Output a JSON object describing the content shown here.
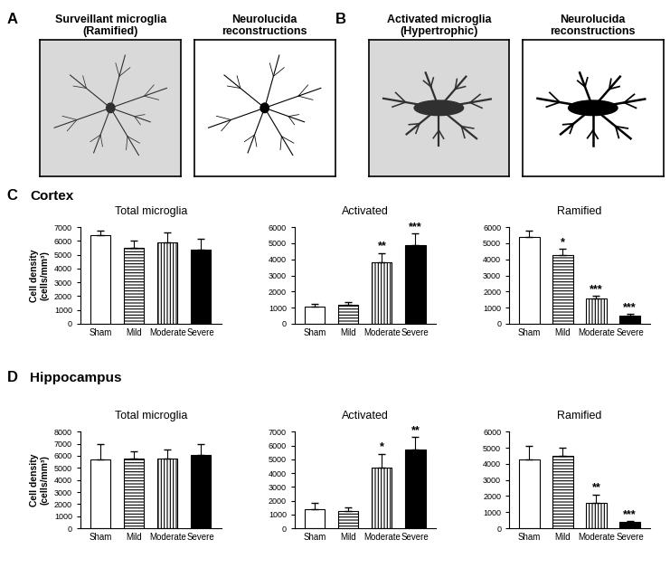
{
  "panels": [
    {
      "label": "A",
      "image_title": "Surveillant microglia\n(Ramified)",
      "reconstruction_title": "Neurolucida\nreconstructions"
    },
    {
      "label": "B",
      "image_title": "Activated microglia\n(Hypertrophic)",
      "reconstruction_title": "Neurolucida\nreconstructions"
    }
  ],
  "sections": [
    {
      "label": "C",
      "title": "Cortex"
    },
    {
      "label": "D",
      "title": "Hippocampus"
    }
  ],
  "chart_data": [
    {
      "type": "bar",
      "title": "Total microglia",
      "y_label": "Cell density\n(cells/mm³)",
      "categories": [
        "Sham",
        "Mild",
        "Moderate",
        "Severe"
      ],
      "values": [
        6400,
        5500,
        5900,
        5350
      ],
      "errors": [
        350,
        550,
        750,
        800
      ],
      "significance": [
        null,
        null,
        null,
        null
      ],
      "colors": [
        "#ffffff",
        "#ffffff",
        "#ffffff",
        "#000000"
      ],
      "ylim": [
        0,
        7000
      ],
      "yticks": [
        0,
        1000,
        2000,
        3000,
        4000,
        5000,
        6000,
        7000
      ]
    },
    {
      "type": "bar",
      "title": "Activated",
      "categories": [
        "Sham",
        "Mild",
        "Moderate",
        "Severe"
      ],
      "values": [
        1050,
        1200,
        3800,
        4900
      ],
      "errors": [
        200,
        150,
        600,
        700
      ],
      "significance": [
        null,
        null,
        "**",
        "***"
      ],
      "colors": [
        "#ffffff",
        "#ffffff",
        "#ffffff",
        "#000000"
      ],
      "ylim": [
        0,
        6000
      ],
      "yticks": [
        0,
        1000,
        2000,
        3000,
        4000,
        5000,
        6000
      ]
    },
    {
      "type": "bar",
      "title": "Ramified",
      "categories": [
        "Sham",
        "Mild",
        "Moderate",
        "Severe"
      ],
      "values": [
        5400,
        4250,
        1550,
        500
      ],
      "errors": [
        400,
        400,
        200,
        100
      ],
      "significance": [
        null,
        "*",
        "***",
        "***"
      ],
      "colors": [
        "#ffffff",
        "#ffffff",
        "#ffffff",
        "#000000"
      ],
      "ylim": [
        0,
        6000
      ],
      "yticks": [
        0,
        1000,
        2000,
        3000,
        4000,
        5000,
        6000
      ]
    },
    {
      "type": "bar",
      "title": "Total microglia",
      "y_label": "Cell density\n(cells/mm³)",
      "categories": [
        "Sham",
        "Mild",
        "Moderate",
        "Severe"
      ],
      "values": [
        5700,
        5800,
        5800,
        6100
      ],
      "errors": [
        1300,
        600,
        750,
        900
      ],
      "significance": [
        null,
        null,
        null,
        null
      ],
      "colors": [
        "#ffffff",
        "#ffffff",
        "#ffffff",
        "#000000"
      ],
      "ylim": [
        0,
        8000
      ],
      "yticks": [
        0,
        1000,
        2000,
        3000,
        4000,
        5000,
        6000,
        7000,
        8000
      ]
    },
    {
      "type": "bar",
      "title": "Activated",
      "categories": [
        "Sham",
        "Mild",
        "Moderate",
        "Severe"
      ],
      "values": [
        1400,
        1250,
        4400,
        5700
      ],
      "errors": [
        450,
        250,
        1000,
        900
      ],
      "significance": [
        null,
        null,
        "*",
        "**"
      ],
      "colors": [
        "#ffffff",
        "#ffffff",
        "#ffffff",
        "#000000"
      ],
      "ylim": [
        0,
        7000
      ],
      "yticks": [
        0,
        1000,
        2000,
        3000,
        4000,
        5000,
        6000,
        7000
      ]
    },
    {
      "type": "bar",
      "title": "Ramified",
      "categories": [
        "Sham",
        "Mild",
        "Moderate",
        "Severe"
      ],
      "values": [
        4300,
        4500,
        1600,
        380
      ],
      "errors": [
        800,
        500,
        500,
        50
      ],
      "significance": [
        null,
        null,
        "**",
        "***"
      ],
      "colors": [
        "#ffffff",
        "#ffffff",
        "#ffffff",
        "#000000"
      ],
      "ylim": [
        0,
        6000
      ],
      "yticks": [
        0,
        1000,
        2000,
        3000,
        4000,
        5000,
        6000
      ]
    }
  ]
}
